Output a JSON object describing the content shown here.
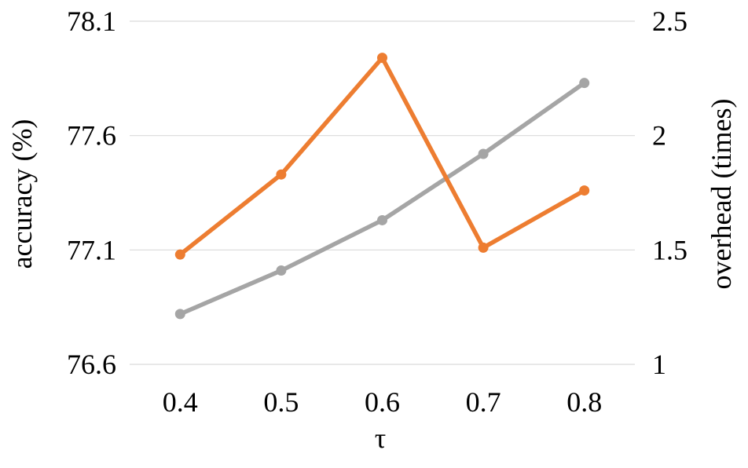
{
  "chart_data": {
    "type": "line",
    "title": "",
    "xlabel": "τ",
    "ylabel": "accuracy (%)",
    "y2label": "overhead (times)",
    "categories": [
      "0.4",
      "0.5",
      "0.6",
      "0.7",
      "0.8"
    ],
    "ylim": [
      76.6,
      78.1
    ],
    "y2lim": [
      1,
      2.5
    ],
    "yticks": [
      "76.6",
      "77.1",
      "77.6",
      "78.1"
    ],
    "y2ticks": [
      "1",
      "1.5",
      "2",
      "2.5"
    ],
    "grid": true,
    "legend": "none",
    "series": [
      {
        "axis": "left",
        "color": "#ed7d31",
        "values": [
          77.08,
          77.43,
          77.94,
          77.11,
          77.36
        ]
      },
      {
        "axis": "right",
        "color": "#a5a5a5",
        "values": [
          1.22,
          1.41,
          1.63,
          1.92,
          2.23
        ]
      }
    ]
  }
}
